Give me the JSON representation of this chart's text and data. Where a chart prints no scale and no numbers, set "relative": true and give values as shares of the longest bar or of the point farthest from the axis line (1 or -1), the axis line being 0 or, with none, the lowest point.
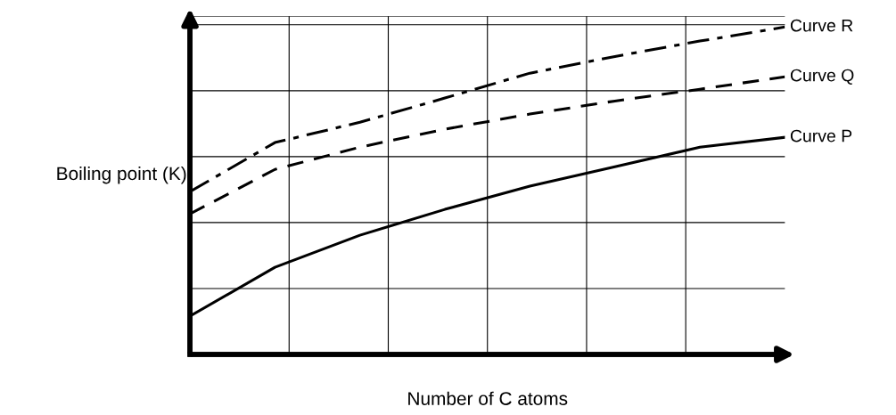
{
  "chart_data": {
    "type": "line",
    "relative": true,
    "xlabel": "Number of C atoms",
    "ylabel": "Boiling point (K)",
    "grid": true,
    "marker": "none",
    "categories": [
      null,
      null,
      null,
      null,
      null,
      null,
      null,
      null
    ],
    "series": [
      {
        "name": "Curve R",
        "color": "#000000",
        "line_style": "dashdot",
        "values": [
          0.497,
          0.647,
          0.709,
          0.783,
          0.859,
          0.91,
          0.957,
          1.0
        ]
      },
      {
        "name": "Curve Q",
        "color": "#000000",
        "line_style": "dashed",
        "values": [
          0.429,
          0.565,
          0.633,
          0.688,
          0.734,
          0.774,
          0.81,
          0.848
        ]
      },
      {
        "name": "Curve P",
        "color": "#000000",
        "line_style": "solid",
        "values": [
          0.117,
          0.266,
          0.364,
          0.443,
          0.514,
          0.573,
          0.633,
          0.663
        ]
      }
    ]
  }
}
